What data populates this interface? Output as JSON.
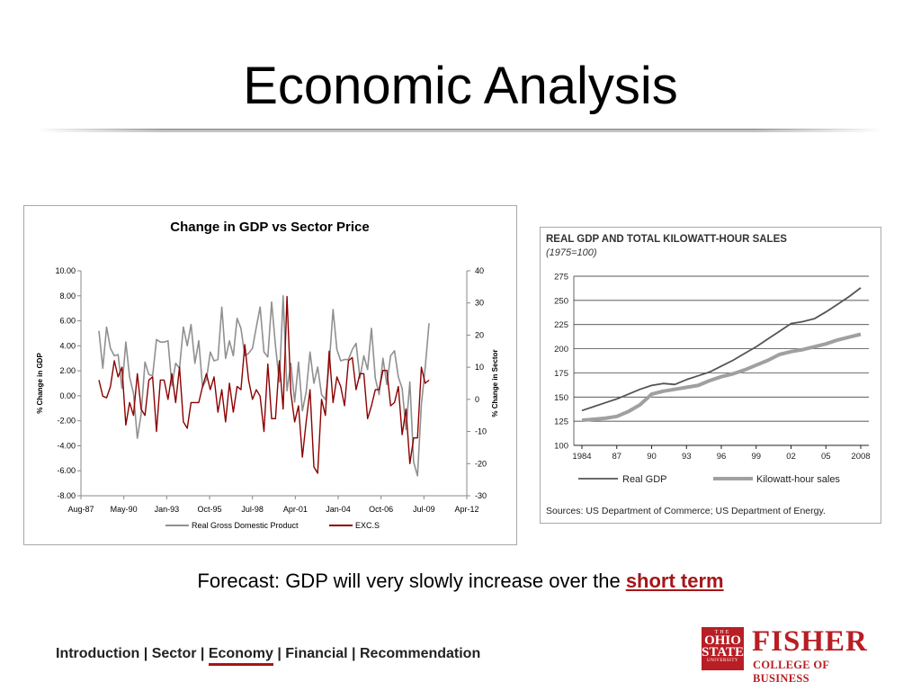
{
  "slide": {
    "title": "Economic Analysis",
    "forecast_prefix": "Forecast: GDP will very slowly increase over the ",
    "forecast_highlight": "short term"
  },
  "footer": {
    "nav": [
      "Introduction",
      "Sector",
      "Economy",
      "Financial",
      "Recommendation"
    ],
    "separator": " | ",
    "active": "Economy"
  },
  "logo": {
    "seal_top": "THE",
    "seal_mid1": "OHIO",
    "seal_mid2": "STATE",
    "seal_bottom": "UNIVERSITY",
    "name": "FISHER",
    "subtitle": "COLLEGE OF BUSINESS",
    "color": "#b81e24"
  },
  "chart_data": [
    {
      "type": "line",
      "title": "Change in GDP vs Sector Price",
      "xlabel": "",
      "ylabel": "% Change in GDP",
      "y2label": "% Change in Sector",
      "ylim": [
        -8,
        10
      ],
      "y2lim": [
        -30,
        40
      ],
      "yticks": [
        "10.00",
        "8.00",
        "6.00",
        "4.00",
        "2.00",
        "0.00",
        "-2.00",
        "-4.00",
        "-6.00",
        "-8.00"
      ],
      "y2ticks": [
        "40",
        "30",
        "20",
        "10",
        "0",
        "-10",
        "-20",
        "-30"
      ],
      "xticks": [
        "Aug-87",
        "May-90",
        "Jan-93",
        "Oct-95",
        "Jul-98",
        "Apr-01",
        "Jan-04",
        "Oct-06",
        "Jul-09",
        "Apr-12"
      ],
      "legend_position": "bottom",
      "grid": false,
      "series": [
        {
          "name": "Real Gross Domestic Product",
          "axis": "left",
          "color": "#909090",
          "values": [
            5.2,
            2.2,
            5.5,
            3.8,
            3.2,
            3.3,
            0.6,
            4.3,
            1.5,
            0.2,
            -3.4,
            -1.5,
            2.7,
            1.7,
            1.6,
            4.5,
            4.3,
            4.3,
            4.4,
            0.8,
            2.6,
            2.2,
            5.5,
            4.0,
            5.7,
            2.6,
            4.4,
            0.7,
            1.3,
            3.5,
            2.8,
            2.9,
            7.1,
            3.0,
            4.4,
            3.2,
            6.2,
            5.4,
            3.2,
            3.4,
            3.8,
            5.5,
            7.1,
            3.5,
            3.1,
            7.5,
            4.0,
            1.1,
            8.0,
            0.4,
            2.6,
            -0.5,
            2.7,
            -1.2,
            0.3,
            3.5,
            1.0,
            2.3,
            0.1,
            -0.3,
            2.5,
            6.9,
            3.7,
            2.8,
            2.9,
            2.9,
            3.7,
            4.2,
            1.4,
            3.2,
            2.1,
            5.4,
            1.4,
            0.1,
            3.0,
            0.9,
            3.2,
            3.6,
            1.5,
            0.6,
            -2.7,
            1.1,
            -5.3,
            -6.4,
            -0.7,
            2.2,
            5.8
          ]
        },
        {
          "name": "EXC.S",
          "axis": "right",
          "color": "#8b0000",
          "values": [
            6,
            1,
            0.5,
            4,
            12,
            7,
            10,
            -8,
            -1,
            -5,
            8,
            -3,
            -5,
            6,
            7,
            -10,
            6,
            6,
            0,
            8,
            -1,
            10,
            -7,
            -9,
            -1,
            -1,
            -1,
            4,
            8,
            3,
            7,
            -4,
            3,
            -7,
            5,
            -4,
            4,
            3,
            17,
            6,
            0,
            3,
            1,
            -10,
            11,
            -6,
            -6,
            12,
            -3,
            32,
            2,
            -7,
            -2,
            -18,
            -7,
            3,
            -21,
            -23,
            0,
            -5,
            15,
            -1,
            7,
            4,
            -2,
            12,
            13,
            3,
            8,
            8,
            -6,
            -2,
            3,
            3,
            9,
            9,
            -2,
            -1,
            4,
            -11,
            -3,
            -20,
            -12,
            -12,
            10,
            5,
            6
          ]
        }
      ]
    },
    {
      "type": "line",
      "title": "REAL GDP AND TOTAL KILOWATT-HOUR SALES",
      "subtitle": "(1975=100)",
      "xlabel": "",
      "ylabel": "",
      "ylim": [
        100,
        275
      ],
      "yticks": [
        "275",
        "250",
        "225",
        "200",
        "175",
        "150",
        "125",
        "100"
      ],
      "xticks": [
        "1984",
        "87",
        "90",
        "93",
        "96",
        "99",
        "02",
        "05",
        "2008"
      ],
      "x": [
        1984,
        1985,
        1986,
        1987,
        1988,
        1989,
        1990,
        1991,
        1992,
        1993,
        1994,
        1995,
        1996,
        1997,
        1998,
        1999,
        2000,
        2001,
        2002,
        2003,
        2004,
        2005,
        2006,
        2007,
        2008
      ],
      "grid": true,
      "legend_position": "bottom",
      "source": "Sources: US Department of Commerce; US Department of Energy.",
      "series": [
        {
          "name": "Real GDP",
          "color": "#555555",
          "values": [
            136,
            140,
            144,
            148,
            153,
            158,
            162,
            164,
            163,
            168,
            172,
            176,
            182,
            188,
            195,
            202,
            210,
            218,
            226,
            228,
            231,
            238,
            246,
            254,
            263
          ]
        },
        {
          "name": "Kilowatt-hour sales",
          "color": "#a0a0a0",
          "values": [
            126,
            127,
            128,
            130,
            135,
            142,
            153,
            156,
            158,
            160,
            162,
            167,
            171,
            174,
            178,
            183,
            188,
            194,
            197,
            199,
            202,
            205,
            209,
            212,
            215
          ]
        }
      ]
    }
  ]
}
